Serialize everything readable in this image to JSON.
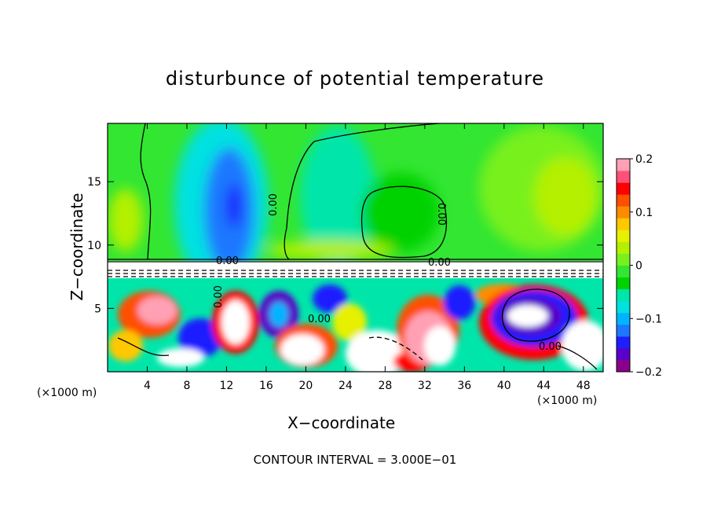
{
  "chart_data": {
    "type": "heatmap",
    "title": "disturbunce of potential temperature",
    "xlabel": "X−coordinate",
    "ylabel": "Z−coordinate",
    "x_unit_label": "(×1000 m)",
    "x_ticks": [
      "4",
      "8",
      "12",
      "16",
      "20",
      "24",
      "28",
      "32",
      "36",
      "40",
      "44",
      "48"
    ],
    "y_ticks": [
      "5",
      "10",
      "15"
    ],
    "xlim": [
      0,
      50
    ],
    "ylim": [
      0,
      19.6
    ],
    "colorbar": {
      "range": [
        -0.2,
        0.2
      ],
      "tick_labels": [
        "0.2",
        "0.1",
        "0",
        "−0.1",
        "−0.2"
      ],
      "colors": [
        "#8b008b",
        "#5a00c8",
        "#1e1eff",
        "#1e78ff",
        "#00b4ff",
        "#00e1e1",
        "#00e6aa",
        "#00d200",
        "#32e632",
        "#78f01e",
        "#b4f000",
        "#e6f000",
        "#ffc800",
        "#ff8c00",
        "#ff5000",
        "#ff0000",
        "#ff5078",
        "#ffa0b4"
      ]
    },
    "contour_labels": [
      "0.00",
      "0.00",
      "0.00",
      "0.00",
      "0.00",
      "0.00",
      "0.00"
    ],
    "footer": "CONTOUR INTERVAL = 3.000E−01",
    "grid": false
  }
}
